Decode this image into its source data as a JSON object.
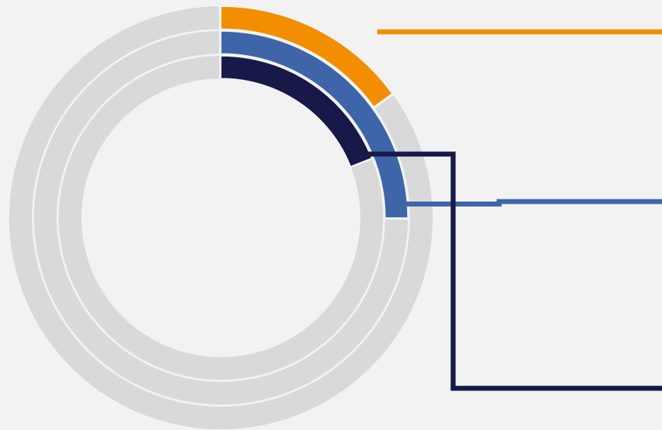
{
  "chart_data": {
    "type": "radial-bar",
    "total": 100,
    "legend": "none",
    "colors": {
      "background": "#f2f2f2",
      "track": "#d9d9d9",
      "separator": "#f2f2f2"
    },
    "series": [
      {
        "value": 15,
        "color": "#f28e00"
      },
      {
        "value": 25,
        "color": "#3e65a8"
      },
      {
        "value": 19,
        "color": "#181849"
      }
    ]
  }
}
